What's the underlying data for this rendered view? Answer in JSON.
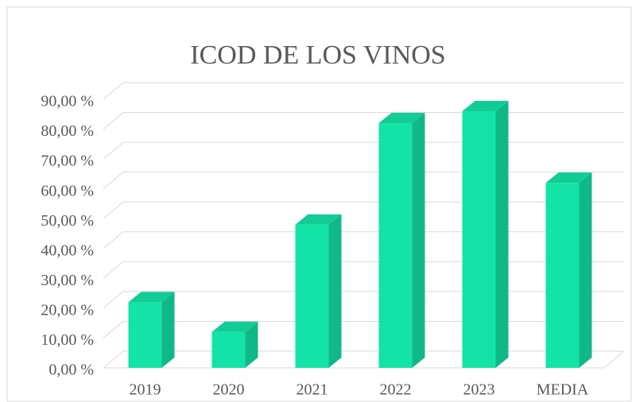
{
  "chart_data": {
    "type": "bar3d",
    "title": "ICOD DE LOS VINOS",
    "categories": [
      "2019",
      "2020",
      "2021",
      "2022",
      "2023",
      "MEDIA"
    ],
    "values": [
      22,
      12,
      48,
      82,
      86,
      62
    ],
    "color": "#14e3a7",
    "ylim": [
      0,
      90
    ],
    "yticks": [
      {
        "value": 0,
        "label": "0,00 %"
      },
      {
        "value": 10,
        "label": "10,00 %"
      },
      {
        "value": 20,
        "label": "20,00 %"
      },
      {
        "value": 30,
        "label": "30,00 %"
      },
      {
        "value": 40,
        "label": "40,00 %"
      },
      {
        "value": 50,
        "label": "50,00 %"
      },
      {
        "value": 60,
        "label": "60,00 %"
      },
      {
        "value": 70,
        "label": "70,00 %"
      },
      {
        "value": 80,
        "label": "80,00 %"
      },
      {
        "value": 90,
        "label": "90,00 %"
      }
    ],
    "grid": true
  }
}
